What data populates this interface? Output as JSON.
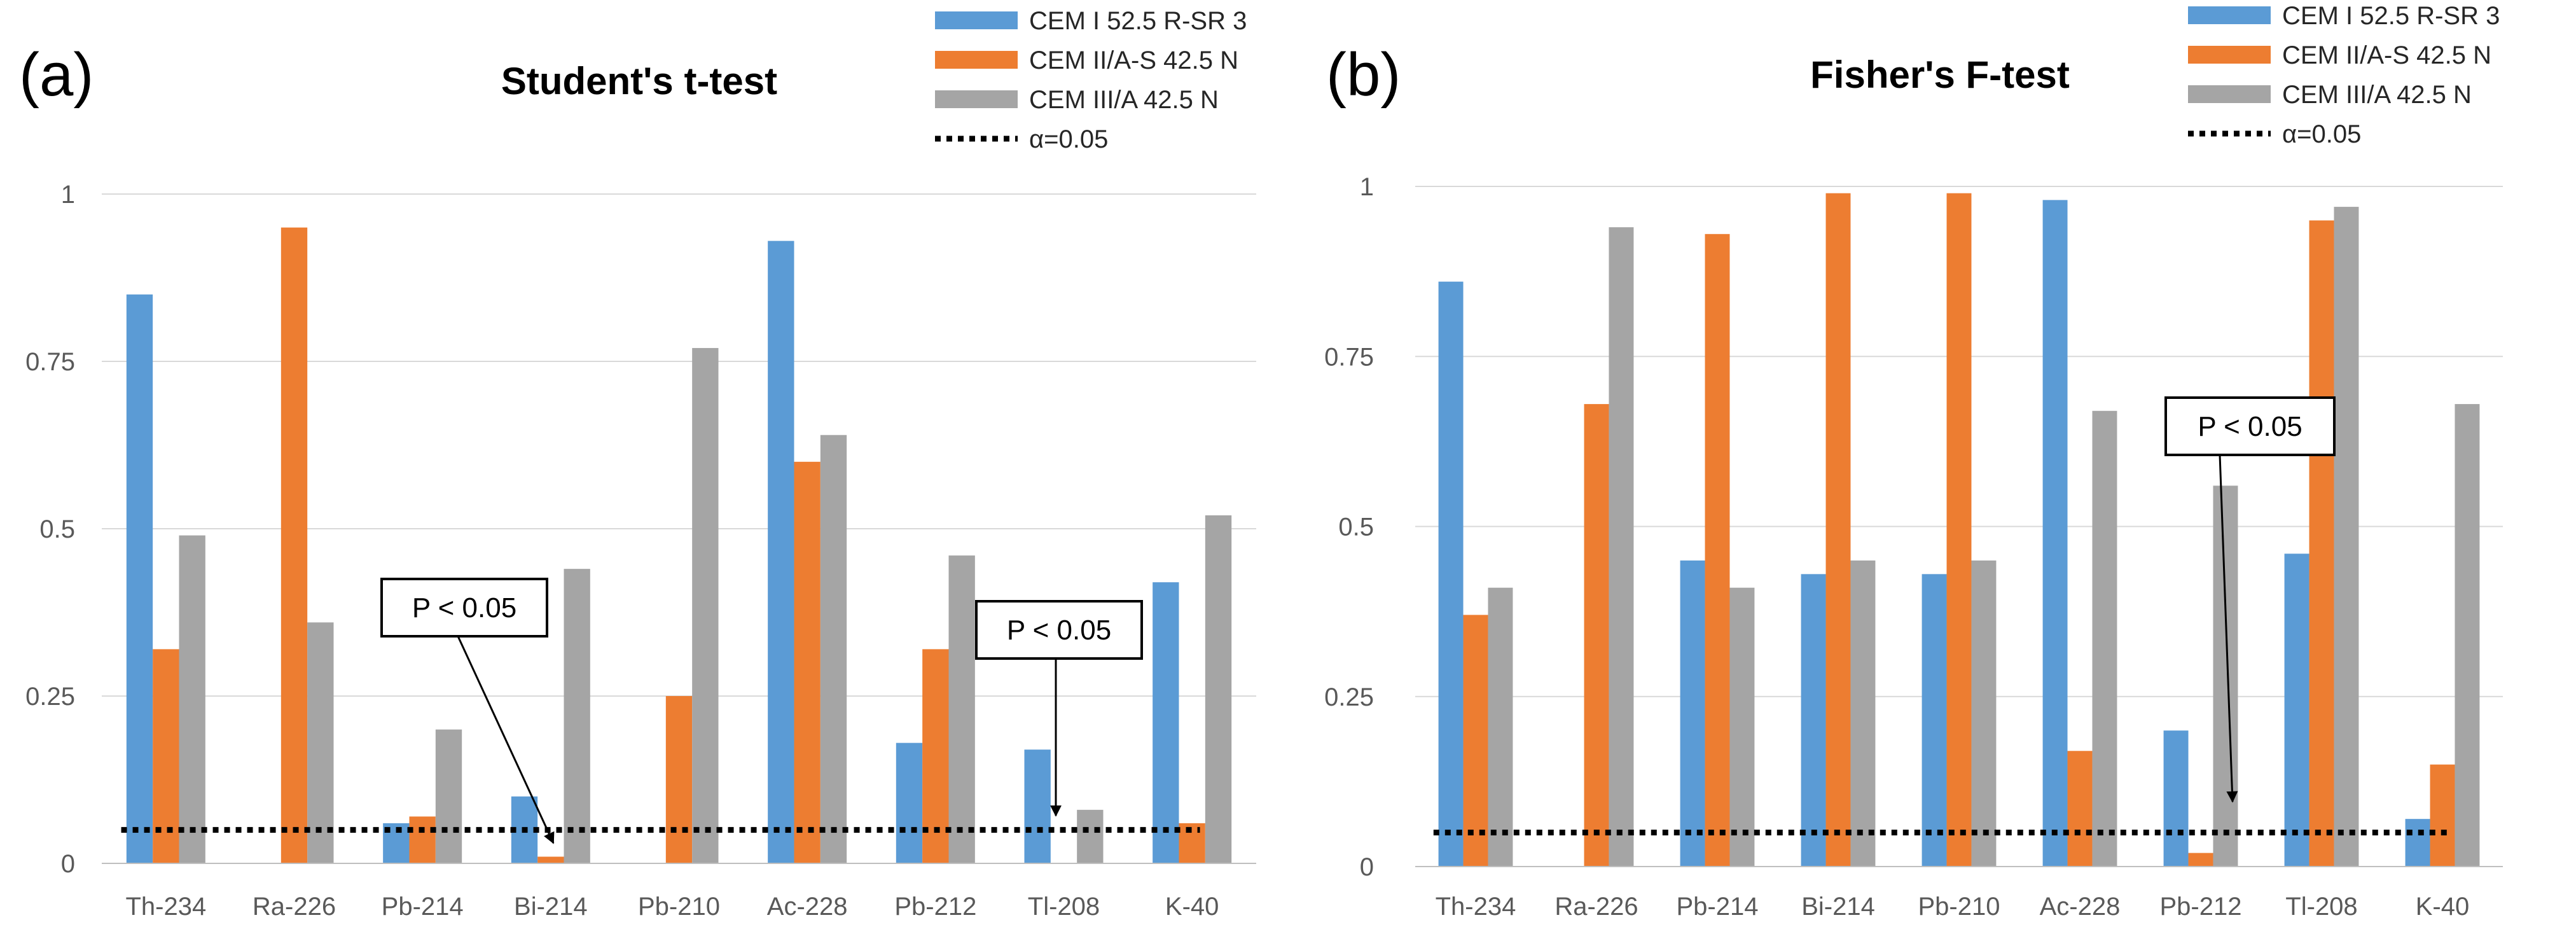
{
  "colors": {
    "series": [
      "#5B9BD5",
      "#ED7D31",
      "#A5A5A5"
    ],
    "threshold": "#000000",
    "grid": "#D9D9D9",
    "axis": "#BFBFBF"
  },
  "chart_data": [
    {
      "type": "bar",
      "panel_label": "(a)",
      "title": "Student's t-test",
      "xlabel": "",
      "ylabel": "",
      "ylim": [
        0,
        1
      ],
      "yticks": [
        0,
        0.25,
        0.5,
        0.75,
        1
      ],
      "ytick_labels": [
        "0",
        "0.25",
        "0.5",
        "0.75",
        "1"
      ],
      "grid": "horizontal",
      "legend_position": "top-right",
      "categories": [
        "Th-234",
        "Ra-226",
        "Pb-214",
        "Bi-214",
        "Pb-210",
        "Ac-228",
        "Pb-212",
        "Tl-208",
        "K-40"
      ],
      "series": [
        {
          "name": "CEM I 52.5 R-SR 3",
          "values": [
            0.85,
            0,
            0.06,
            0.1,
            0,
            0.93,
            0.18,
            0.17,
            0.42
          ]
        },
        {
          "name": "CEM II/A-S 42.5 N",
          "values": [
            0.32,
            0.95,
            0.07,
            0.01,
            0.25,
            0.6,
            0.32,
            0,
            0.06
          ]
        },
        {
          "name": "CEM III/A 42.5 N",
          "values": [
            0.49,
            0.36,
            0.2,
            0.44,
            0.77,
            0.64,
            0.46,
            0.08,
            0.52
          ]
        }
      ],
      "threshold": {
        "name": "α=0.05",
        "value": 0.05
      },
      "annotations": [
        {
          "text": "P < 0.05",
          "target_category": "Bi-214"
        },
        {
          "text": "P < 0.05",
          "target_category": "Tl-208"
        }
      ]
    },
    {
      "type": "bar",
      "panel_label": "(b)",
      "title": "Fisher's F-test",
      "xlabel": "",
      "ylabel": "",
      "ylim": [
        0,
        1
      ],
      "yticks": [
        0,
        0.25,
        0.5,
        0.75,
        1
      ],
      "ytick_labels": [
        "0",
        "0.25",
        "0.5",
        "0.75",
        "1"
      ],
      "grid": "horizontal",
      "legend_position": "top-right",
      "categories": [
        "Th-234",
        "Ra-226",
        "Pb-214",
        "Bi-214",
        "Pb-210",
        "Ac-228",
        "Pb-212",
        "Tl-208",
        "K-40"
      ],
      "series": [
        {
          "name": "CEM I 52.5 R-SR 3",
          "values": [
            0.86,
            0,
            0.45,
            0.43,
            0.43,
            0.98,
            0.2,
            0.46,
            0.07
          ]
        },
        {
          "name": "CEM II/A-S 42.5 N",
          "values": [
            0.37,
            0.68,
            0.93,
            0.99,
            0.99,
            0.17,
            0.02,
            0.95,
            0.15
          ]
        },
        {
          "name": "CEM III/A 42.5 N",
          "values": [
            0.41,
            0.94,
            0.41,
            0.45,
            0.45,
            0.67,
            0.56,
            0.97,
            0.68
          ]
        }
      ],
      "threshold": {
        "name": "α=0.05",
        "value": 0.05
      },
      "annotations": [
        {
          "text": "P < 0.05",
          "target_category": "Pb-212"
        }
      ]
    }
  ]
}
